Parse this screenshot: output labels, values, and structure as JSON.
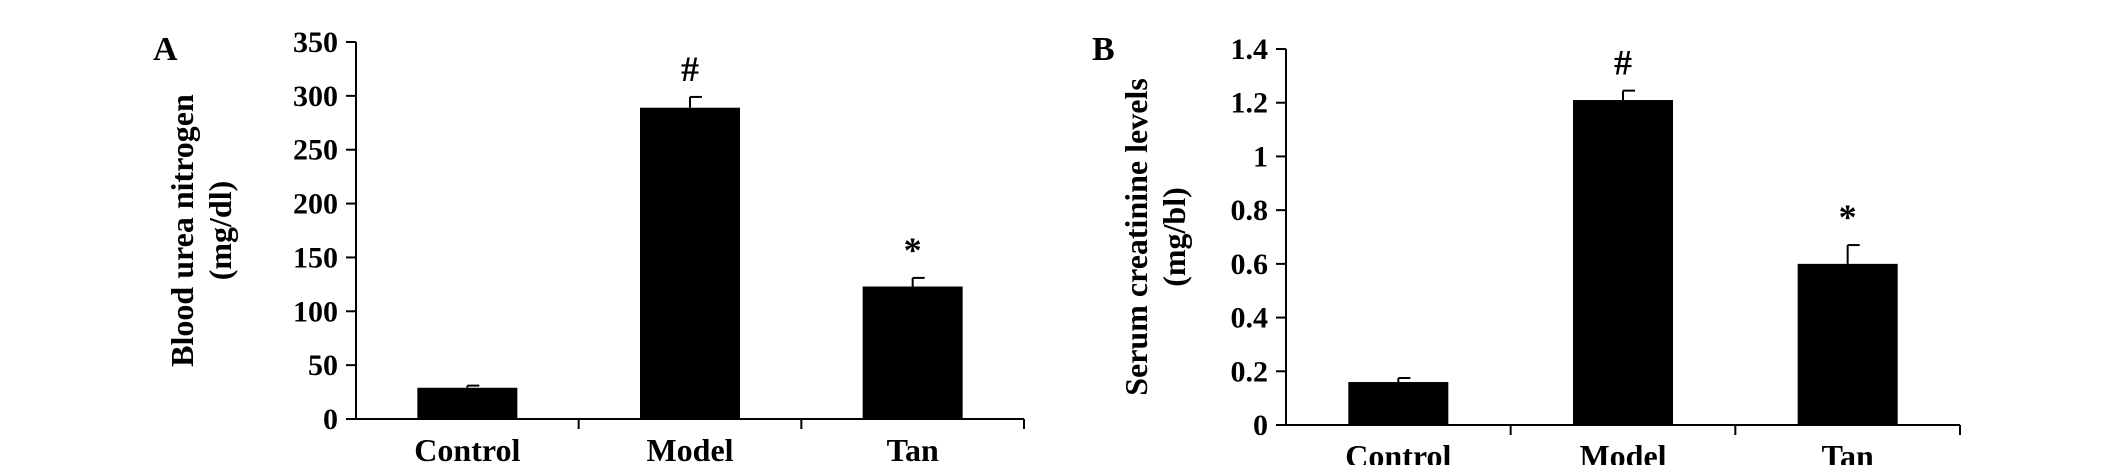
{
  "chart_data": [
    {
      "type": "bar",
      "panel": "A",
      "categories": [
        "Control",
        "Model",
        "Tan"
      ],
      "values": [
        29,
        289,
        123
      ],
      "errors": [
        2,
        10,
        8
      ],
      "annotations": [
        "",
        "#",
        "*"
      ],
      "ylabel_lines": [
        "Blood urea nitrogen",
        "(mg/dl)"
      ],
      "ylim": [
        0,
        350
      ],
      "yticks": [
        "0",
        "50",
        "100",
        "150",
        "200",
        "250",
        "300",
        "350"
      ],
      "ytick_values": [
        0,
        50,
        100,
        150,
        200,
        250,
        300,
        350
      ],
      "bar_color": "#000000",
      "grid": false
    },
    {
      "type": "bar",
      "panel": "B",
      "categories": [
        "Control",
        "Model",
        "Tan"
      ],
      "values": [
        0.16,
        1.21,
        0.6
      ],
      "errors": [
        0.015,
        0.035,
        0.07
      ],
      "annotations": [
        "",
        "#",
        "*"
      ],
      "ylabel_lines": [
        "Serum creatinine levels",
        "(mg/bl)"
      ],
      "ylim": [
        0,
        1.4
      ],
      "yticks": [
        "0",
        "0.2",
        "0.4",
        "0.6",
        "0.8",
        "1",
        "1.2",
        "1.4"
      ],
      "ytick_values": [
        0,
        0.2,
        0.4,
        0.6,
        0.8,
        1,
        1.2,
        1.4
      ],
      "bar_color": "#000000",
      "grid": false
    }
  ]
}
